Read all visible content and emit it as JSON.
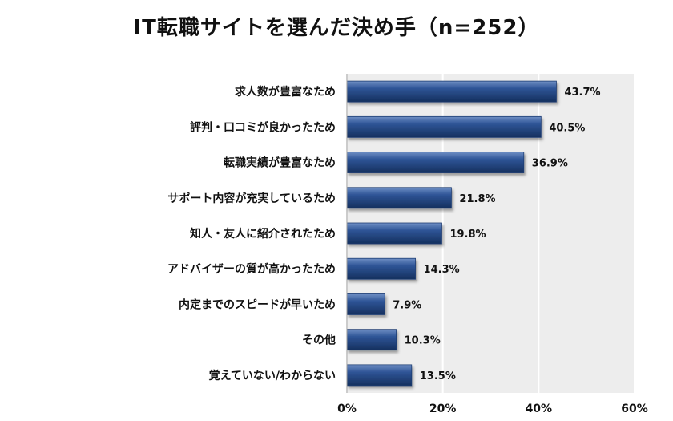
{
  "chart_data": {
    "type": "bar",
    "orientation": "horizontal",
    "title": "IT転職サイトを選んだ決め手（n=252）",
    "categories": [
      "求人数が豊富なため",
      "評判・口コミが良かったため",
      "転職実績が豊富なため",
      "サポート内容が充実しているため",
      "知人・友人に紹介されたため",
      "アドバイザーの質が高かったため",
      "内定までのスピードが早いため",
      "その他",
      "覚えていない/わからない"
    ],
    "values": [
      43.7,
      40.5,
      36.9,
      21.8,
      19.8,
      14.3,
      7.9,
      10.3,
      13.5
    ],
    "value_labels": [
      "43.7%",
      "40.5%",
      "36.9%",
      "21.8%",
      "19.8%",
      "14.3%",
      "7.9%",
      "10.3%",
      "13.5%"
    ],
    "xlim": [
      0,
      60
    ],
    "xticks": [
      0,
      20,
      40,
      60
    ],
    "xtick_labels": [
      "0%",
      "20%",
      "40%",
      "60%"
    ],
    "grid": "vertical",
    "bar_color": "#1f3d73",
    "plot_background": "#ededed"
  }
}
